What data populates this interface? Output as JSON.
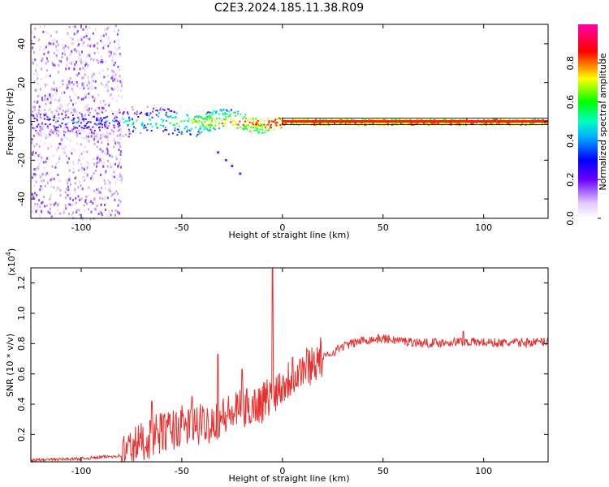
{
  "chart_data": [
    {
      "type": "heatmap",
      "title": "C2E3.2024.185.11.38.R09",
      "xlabel": "Height of straight line (km)",
      "ylabel": "Frequency (Hz)",
      "xlim": [
        -125,
        132
      ],
      "ylim": [
        -50,
        50
      ],
      "x_ticks": [
        -100,
        -50,
        0,
        50,
        100
      ],
      "y_ticks": [
        -40,
        -20,
        0,
        20,
        40
      ],
      "colorbar": {
        "label": "Normalized spectral amplitude",
        "range": [
          0,
          1
        ],
        "ticks": [
          "0.0",
          "0.2",
          "0.4",
          "0.6",
          "0.8"
        ],
        "colormap": [
          "#ffffff",
          "#6a00ff",
          "#0000ff",
          "#00e5ff",
          "#00ff00",
          "#ffff00",
          "#ff0000",
          "#ff00aa"
        ]
      },
      "description_values": {
        "dominant_line_frequency_hz": 0,
        "scatter_region_x": [
          -125,
          -80
        ],
        "scatter_band_width_hz": [
          -10,
          10
        ]
      }
    },
    {
      "type": "line",
      "xlabel": "Height of straight line (km)",
      "ylabel": "SNR (10 * v/v)",
      "y_multiplier": "(x10",
      "y_multiplier_exp": "4",
      "y_multiplier_close": ")",
      "xlim": [
        -125,
        132
      ],
      "ylim": [
        0.02,
        1.3
      ],
      "x_ticks": [
        -100,
        -50,
        0,
        50,
        100
      ],
      "y_ticks": [
        "0.2",
        "0.4",
        "0.6",
        "0.8",
        "1.0",
        "1.2"
      ],
      "series_color": "#e8302e",
      "key_points": [
        {
          "x": -125,
          "y": 0.03
        },
        {
          "x": -100,
          "y": 0.04
        },
        {
          "x": -80,
          "y": 0.06
        },
        {
          "x": -70,
          "y": 0.14
        },
        {
          "x": -60,
          "y": 0.2
        },
        {
          "x": -50,
          "y": 0.24
        },
        {
          "x": -40,
          "y": 0.25
        },
        {
          "x": -30,
          "y": 0.3
        },
        {
          "x": -20,
          "y": 0.35
        },
        {
          "x": -10,
          "y": 0.4
        },
        {
          "x": 0,
          "y": 0.52
        },
        {
          "x": 10,
          "y": 0.62
        },
        {
          "x": 20,
          "y": 0.7
        },
        {
          "x": 30,
          "y": 0.78
        },
        {
          "x": 40,
          "y": 0.82
        },
        {
          "x": 50,
          "y": 0.83
        },
        {
          "x": 70,
          "y": 0.8
        },
        {
          "x": 90,
          "y": 0.81
        },
        {
          "x": 110,
          "y": 0.8
        },
        {
          "x": 132,
          "y": 0.81
        }
      ],
      "spikes": [
        {
          "x": -65,
          "y": 0.42
        },
        {
          "x": -45,
          "y": 0.45
        },
        {
          "x": -32,
          "y": 0.73
        },
        {
          "x": -20,
          "y": 0.63
        },
        {
          "x": -5,
          "y": 1.3
        },
        {
          "x": 5,
          "y": 0.71
        },
        {
          "x": 90,
          "y": 0.88
        }
      ]
    }
  ]
}
